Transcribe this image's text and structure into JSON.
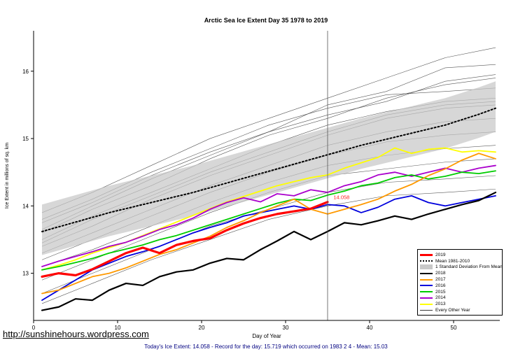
{
  "title": "Arctic Sea Ice Extent Day 35 1978 to 2019",
  "footer": {
    "link": "http://sunshinehours.wordpress.com",
    "status": "Today's Ice Extent: 14.058 - Record for the day: 15.719 which occurred on 1983 2 4 - Mean: 15.03"
  },
  "chart_data": {
    "type": "line",
    "title": "Arctic Sea Ice Extent Day 35 1978 to 2019",
    "xlabel": "Day of Year",
    "ylabel": "Ice Extent in millions of sq. km",
    "xlim": [
      0,
      55.5
    ],
    "ylim": [
      12.3,
      16.6
    ],
    "xticks": [
      0,
      10,
      20,
      30,
      40,
      50
    ],
    "yticks": [
      13,
      14,
      15,
      16
    ],
    "grid": false,
    "legend_position": "bottom-right",
    "vline": {
      "x": 35,
      "color": "#555555"
    },
    "annotation": {
      "x": 35.7,
      "y": 14.1,
      "text": "14.058",
      "color": "#ff2222"
    },
    "x_sets": {
      "main": [
        1,
        3,
        5,
        7,
        9,
        11,
        13,
        15,
        17,
        19,
        21,
        23,
        25,
        27,
        29,
        31,
        33,
        35,
        37,
        39,
        41,
        43,
        45,
        47,
        49,
        51,
        53,
        55
      ],
      "y2019": [
        1,
        3,
        5,
        7,
        9,
        11,
        13,
        15,
        17,
        19,
        21,
        23,
        25,
        27,
        29,
        31,
        33,
        35
      ],
      "sparse": [
        1,
        7,
        14,
        21,
        28,
        35,
        42,
        49,
        55
      ]
    },
    "band": {
      "name": "1 Standard Deviation From Mean",
      "color": "#c8c8c8",
      "x": "main",
      "upper": [
        14.02,
        14.09,
        14.16,
        14.23,
        14.3,
        14.36,
        14.42,
        14.48,
        14.54,
        14.6,
        14.67,
        14.74,
        14.81,
        14.88,
        14.95,
        15.02,
        15.09,
        15.16,
        15.23,
        15.3,
        15.36,
        15.42,
        15.48,
        15.54,
        15.6,
        15.68,
        15.76,
        15.85
      ],
      "lower": [
        13.27,
        13.34,
        13.41,
        13.48,
        13.55,
        13.61,
        13.67,
        13.73,
        13.79,
        13.85,
        13.92,
        13.99,
        14.06,
        14.13,
        14.2,
        14.27,
        14.34,
        14.41,
        14.48,
        14.55,
        14.61,
        14.67,
        14.73,
        14.79,
        14.85,
        14.93,
        15.01,
        15.1
      ]
    },
    "series": [
      {
        "name": "Mean 1981-2010",
        "color": "#000000",
        "width": 2,
        "dash": "2,3",
        "x": "main",
        "y": [
          13.62,
          13.69,
          13.76,
          13.83,
          13.9,
          13.96,
          14.02,
          14.08,
          14.14,
          14.2,
          14.27,
          14.34,
          14.41,
          14.48,
          14.55,
          14.62,
          14.69,
          14.76,
          14.83,
          14.9,
          14.96,
          15.02,
          15.08,
          15.14,
          15.2,
          15.28,
          15.36,
          15.45
        ]
      },
      {
        "name": "2013",
        "color": "#ffff00",
        "width": 1.8,
        "x": "main",
        "y": [
          13.05,
          13.12,
          13.2,
          13.3,
          13.38,
          13.46,
          13.56,
          13.66,
          13.76,
          13.86,
          13.96,
          14.06,
          14.14,
          14.22,
          14.3,
          14.36,
          14.42,
          14.46,
          14.56,
          14.64,
          14.72,
          14.86,
          14.78,
          14.84,
          14.86,
          14.8,
          14.82,
          14.8
        ]
      },
      {
        "name": "2014",
        "color": "#aa00cc",
        "width": 1.8,
        "x": "main",
        "y": [
          13.1,
          13.18,
          13.25,
          13.32,
          13.4,
          13.46,
          13.55,
          13.65,
          13.72,
          13.82,
          13.95,
          14.05,
          14.12,
          14.06,
          14.18,
          14.15,
          14.24,
          14.2,
          14.3,
          14.36,
          14.46,
          14.5,
          14.44,
          14.5,
          14.56,
          14.5,
          14.56,
          14.6
        ]
      },
      {
        "name": "2015",
        "color": "#00cc00",
        "width": 1.8,
        "x": "main",
        "y": [
          13.05,
          13.1,
          13.16,
          13.22,
          13.3,
          13.36,
          13.42,
          13.5,
          13.56,
          13.64,
          13.72,
          13.8,
          13.88,
          13.96,
          14.04,
          14.1,
          14.08,
          14.16,
          14.22,
          14.3,
          14.34,
          14.42,
          14.46,
          14.4,
          14.44,
          14.5,
          14.48,
          14.52
        ]
      },
      {
        "name": "2016",
        "color": "#0000dd",
        "width": 1.8,
        "x": "main",
        "y": [
          12.6,
          12.75,
          12.9,
          13.05,
          13.15,
          13.25,
          13.32,
          13.4,
          13.5,
          13.6,
          13.68,
          13.75,
          13.85,
          13.9,
          13.95,
          14.0,
          13.95,
          14.02,
          14.0,
          13.9,
          13.98,
          14.1,
          14.15,
          14.05,
          14.0,
          14.05,
          14.1,
          14.15
        ]
      },
      {
        "name": "2017",
        "color": "#ff9900",
        "width": 1.8,
        "x": "main",
        "y": [
          12.7,
          12.75,
          12.85,
          12.95,
          13.0,
          13.08,
          13.18,
          13.28,
          13.35,
          13.45,
          13.55,
          13.68,
          13.78,
          13.9,
          14.0,
          14.1,
          13.95,
          13.88,
          13.95,
          14.02,
          14.1,
          14.22,
          14.32,
          14.45,
          14.55,
          14.68,
          14.78,
          14.7
        ]
      },
      {
        "name": "2018",
        "color": "#000000",
        "width": 2.2,
        "x": "main",
        "y": [
          12.45,
          12.5,
          12.62,
          12.6,
          12.75,
          12.85,
          12.82,
          12.95,
          13.02,
          13.05,
          13.15,
          13.22,
          13.2,
          13.35,
          13.48,
          13.62,
          13.5,
          13.62,
          13.75,
          13.72,
          13.78,
          13.85,
          13.8,
          13.88,
          13.95,
          14.02,
          14.08,
          14.2
        ]
      },
      {
        "name": "2019",
        "color": "#ff0000",
        "width": 3.2,
        "x": "y2019",
        "y": [
          12.95,
          13.0,
          12.97,
          13.06,
          13.18,
          13.3,
          13.38,
          13.3,
          13.42,
          13.48,
          13.52,
          13.64,
          13.74,
          13.82,
          13.88,
          13.92,
          13.96,
          14.058
        ]
      }
    ],
    "other_years": {
      "name": "Every Other Year",
      "color": "#3a3a3a",
      "width": 0.6,
      "x": "sparse",
      "lines": [
        [
          13.9,
          14.2,
          14.6,
          15.0,
          15.3,
          15.6,
          15.9,
          16.2,
          16.35
        ],
        [
          13.75,
          14.05,
          14.45,
          14.8,
          15.1,
          15.5,
          15.7,
          16.05,
          16.1
        ],
        [
          13.6,
          13.95,
          14.3,
          14.7,
          15.05,
          15.3,
          15.6,
          15.8,
          15.9
        ],
        [
          13.8,
          14.1,
          14.5,
          14.85,
          15.2,
          15.45,
          15.65,
          15.7,
          15.75
        ],
        [
          13.65,
          14.0,
          14.4,
          14.75,
          15.1,
          15.35,
          15.55,
          15.85,
          15.95
        ],
        [
          13.5,
          13.85,
          14.2,
          14.55,
          14.9,
          15.2,
          15.4,
          15.55,
          15.6
        ],
        [
          13.45,
          13.8,
          14.15,
          14.5,
          14.8,
          15.1,
          15.35,
          15.5,
          15.55
        ],
        [
          13.4,
          13.7,
          14.1,
          14.45,
          14.75,
          15.05,
          15.3,
          15.45,
          15.5
        ],
        [
          13.3,
          13.6,
          13.95,
          14.3,
          14.6,
          14.9,
          15.1,
          15.25,
          15.3
        ],
        [
          13.2,
          13.5,
          13.85,
          14.2,
          14.5,
          14.75,
          14.95,
          15.05,
          15.1
        ],
        [
          13.1,
          13.35,
          13.7,
          14.05,
          14.35,
          14.6,
          14.75,
          14.85,
          14.9
        ],
        [
          12.9,
          13.2,
          13.55,
          13.9,
          14.2,
          14.45,
          14.55,
          14.65,
          14.7
        ],
        [
          12.7,
          13.0,
          13.35,
          13.7,
          13.95,
          14.2,
          14.35,
          14.4,
          14.45
        ],
        [
          12.55,
          12.85,
          13.2,
          13.5,
          13.8,
          14.0,
          14.15,
          14.2,
          14.25
        ]
      ]
    },
    "legend": [
      {
        "label": "2019",
        "swatch": "line",
        "color": "#ff0000",
        "width": 3
      },
      {
        "label": "Mean 1981-2010",
        "swatch": "dashed",
        "color": "#000000",
        "width": 2
      },
      {
        "label": "1 Standard Deviation From Mean",
        "swatch": "box",
        "color": "#c8c8c8",
        "width": 7
      },
      {
        "label": "2018",
        "swatch": "line",
        "color": "#000000",
        "width": 2
      },
      {
        "label": "2017",
        "swatch": "line",
        "color": "#ff9900",
        "width": 2
      },
      {
        "label": "2016",
        "swatch": "line",
        "color": "#0000dd",
        "width": 2
      },
      {
        "label": "2015",
        "swatch": "line",
        "color": "#00cc00",
        "width": 2
      },
      {
        "label": "2014",
        "swatch": "line",
        "color": "#aa00cc",
        "width": 2
      },
      {
        "label": "2013",
        "swatch": "line",
        "color": "#ffff00",
        "width": 2
      },
      {
        "label": "Every Other Year",
        "swatch": "line",
        "color": "#3a3a3a",
        "width": 1
      }
    ]
  }
}
